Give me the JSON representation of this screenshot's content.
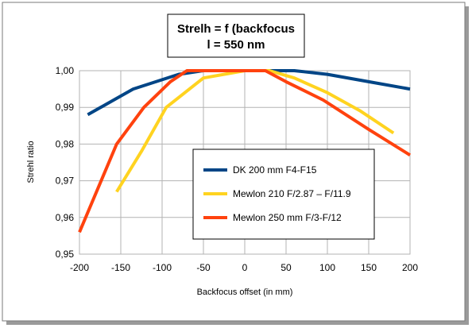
{
  "chart_data": {
    "type": "line",
    "title_lines": [
      "Strelh = f (backfocus",
      "l = 550 nm"
    ],
    "xlabel": "Backfocus offset (in mm)",
    "ylabel": "Strehl ratio",
    "xlim": [
      -200,
      200
    ],
    "ylim": [
      0.95,
      1.0
    ],
    "xticks": [
      -200,
      -150,
      -100,
      -50,
      0,
      50,
      100,
      150,
      200
    ],
    "xtick_labels": [
      "-200",
      "-150",
      "-100",
      "-50",
      "0",
      "50",
      "100",
      "150",
      "200"
    ],
    "yticks": [
      0.95,
      0.96,
      0.97,
      0.98,
      0.99,
      1.0
    ],
    "ytick_labels": [
      "0,95",
      "0,96",
      "0,97",
      "0,98",
      "0,99",
      "1,00"
    ],
    "grid": true,
    "legend_position": "center-right",
    "series": [
      {
        "name": "DK 200 mm F4-F15",
        "color": "#004586",
        "x": [
          -190,
          -135,
          -80,
          -50,
          0,
          60,
          100,
          150,
          200
        ],
        "y": [
          0.988,
          0.995,
          0.999,
          1.0,
          1.0,
          1.0,
          0.999,
          0.997,
          0.995
        ]
      },
      {
        "name": "Mewlon 210 F/2.87 – F/11.9",
        "color": "#ffd320",
        "x": [
          -155,
          -125,
          -95,
          -50,
          0,
          30,
          60,
          100,
          140,
          180
        ],
        "y": [
          0.967,
          0.978,
          0.99,
          0.998,
          1.0,
          1.0,
          0.998,
          0.994,
          0.989,
          0.983
        ]
      },
      {
        "name": "Mewlon 250 mm F/3-F/12",
        "color": "#ff420e",
        "x": [
          -200,
          -155,
          -122,
          -90,
          -70,
          0,
          25,
          50,
          95,
          150,
          200
        ],
        "y": [
          0.956,
          0.98,
          0.99,
          0.997,
          1.0,
          1.0,
          1.0,
          0.997,
          0.992,
          0.984,
          0.977
        ]
      }
    ]
  }
}
